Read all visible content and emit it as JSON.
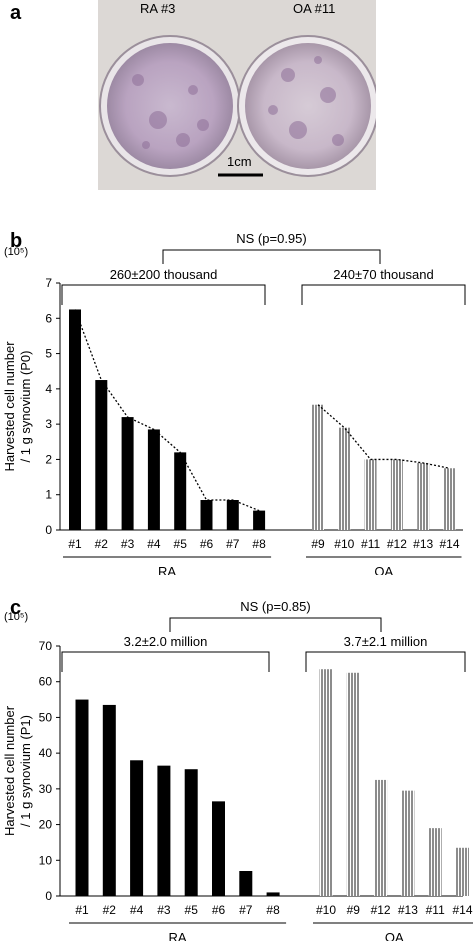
{
  "panel_a": {
    "letter": "a",
    "dish_labels": [
      "RA #3",
      "OA #11"
    ],
    "scale_bar_label": "1cm"
  },
  "chart_data": [
    {
      "panel_letter": "b",
      "type": "bar",
      "unit_label": "(10⁵)",
      "ylabel_line1": "Harvested cell number",
      "ylabel_line2": "/ 1 g synovium (P0)",
      "ylim": [
        0,
        7
      ],
      "yticks": [
        0,
        1,
        2,
        3,
        4,
        5,
        6,
        7
      ],
      "categories": [
        "#1",
        "#2",
        "#3",
        "#4",
        "#5",
        "#6",
        "#7",
        "#8",
        "#9",
        "#10",
        "#11",
        "#12",
        "#13",
        "#14"
      ],
      "values": [
        6.25,
        4.25,
        3.2,
        2.85,
        2.2,
        0.85,
        0.85,
        0.55,
        3.55,
        2.9,
        2.0,
        2.0,
        1.9,
        1.75
      ],
      "groups": [
        {
          "name": "RA",
          "summary": "260±200 thousand",
          "color": "#000000",
          "pattern": "solid"
        },
        {
          "name": "OA",
          "summary": "240±70 thousand",
          "color": "#8c8c8c",
          "pattern": "striped"
        }
      ],
      "group_sizes": [
        8,
        6
      ],
      "comparison": "NS (p=0.95)",
      "trend_line": true
    },
    {
      "panel_letter": "c",
      "type": "bar",
      "unit_label": "(10⁵)",
      "ylabel_line1": "Harvested cell number",
      "ylabel_line2": "/ 1 g synovium (P1)",
      "ylim": [
        0,
        70
      ],
      "yticks": [
        0,
        10,
        20,
        30,
        40,
        50,
        60,
        70
      ],
      "categories": [
        "#1",
        "#2",
        "#4",
        "#3",
        "#5",
        "#6",
        "#7",
        "#8",
        "#10",
        "#9",
        "#12",
        "#13",
        "#11",
        "#14"
      ],
      "values": [
        55,
        53.5,
        38,
        36.5,
        35.5,
        26.5,
        7,
        1,
        63.5,
        62.5,
        32.5,
        29.5,
        19,
        13.5
      ],
      "groups": [
        {
          "name": "RA",
          "summary": "3.2±2.0 million",
          "color": "#000000",
          "pattern": "solid"
        },
        {
          "name": "OA",
          "summary": "3.7±2.1 million",
          "color": "#8c8c8c",
          "pattern": "striped"
        }
      ],
      "group_sizes": [
        8,
        6
      ],
      "comparison": "NS (p=0.85)",
      "trend_line": false
    }
  ]
}
